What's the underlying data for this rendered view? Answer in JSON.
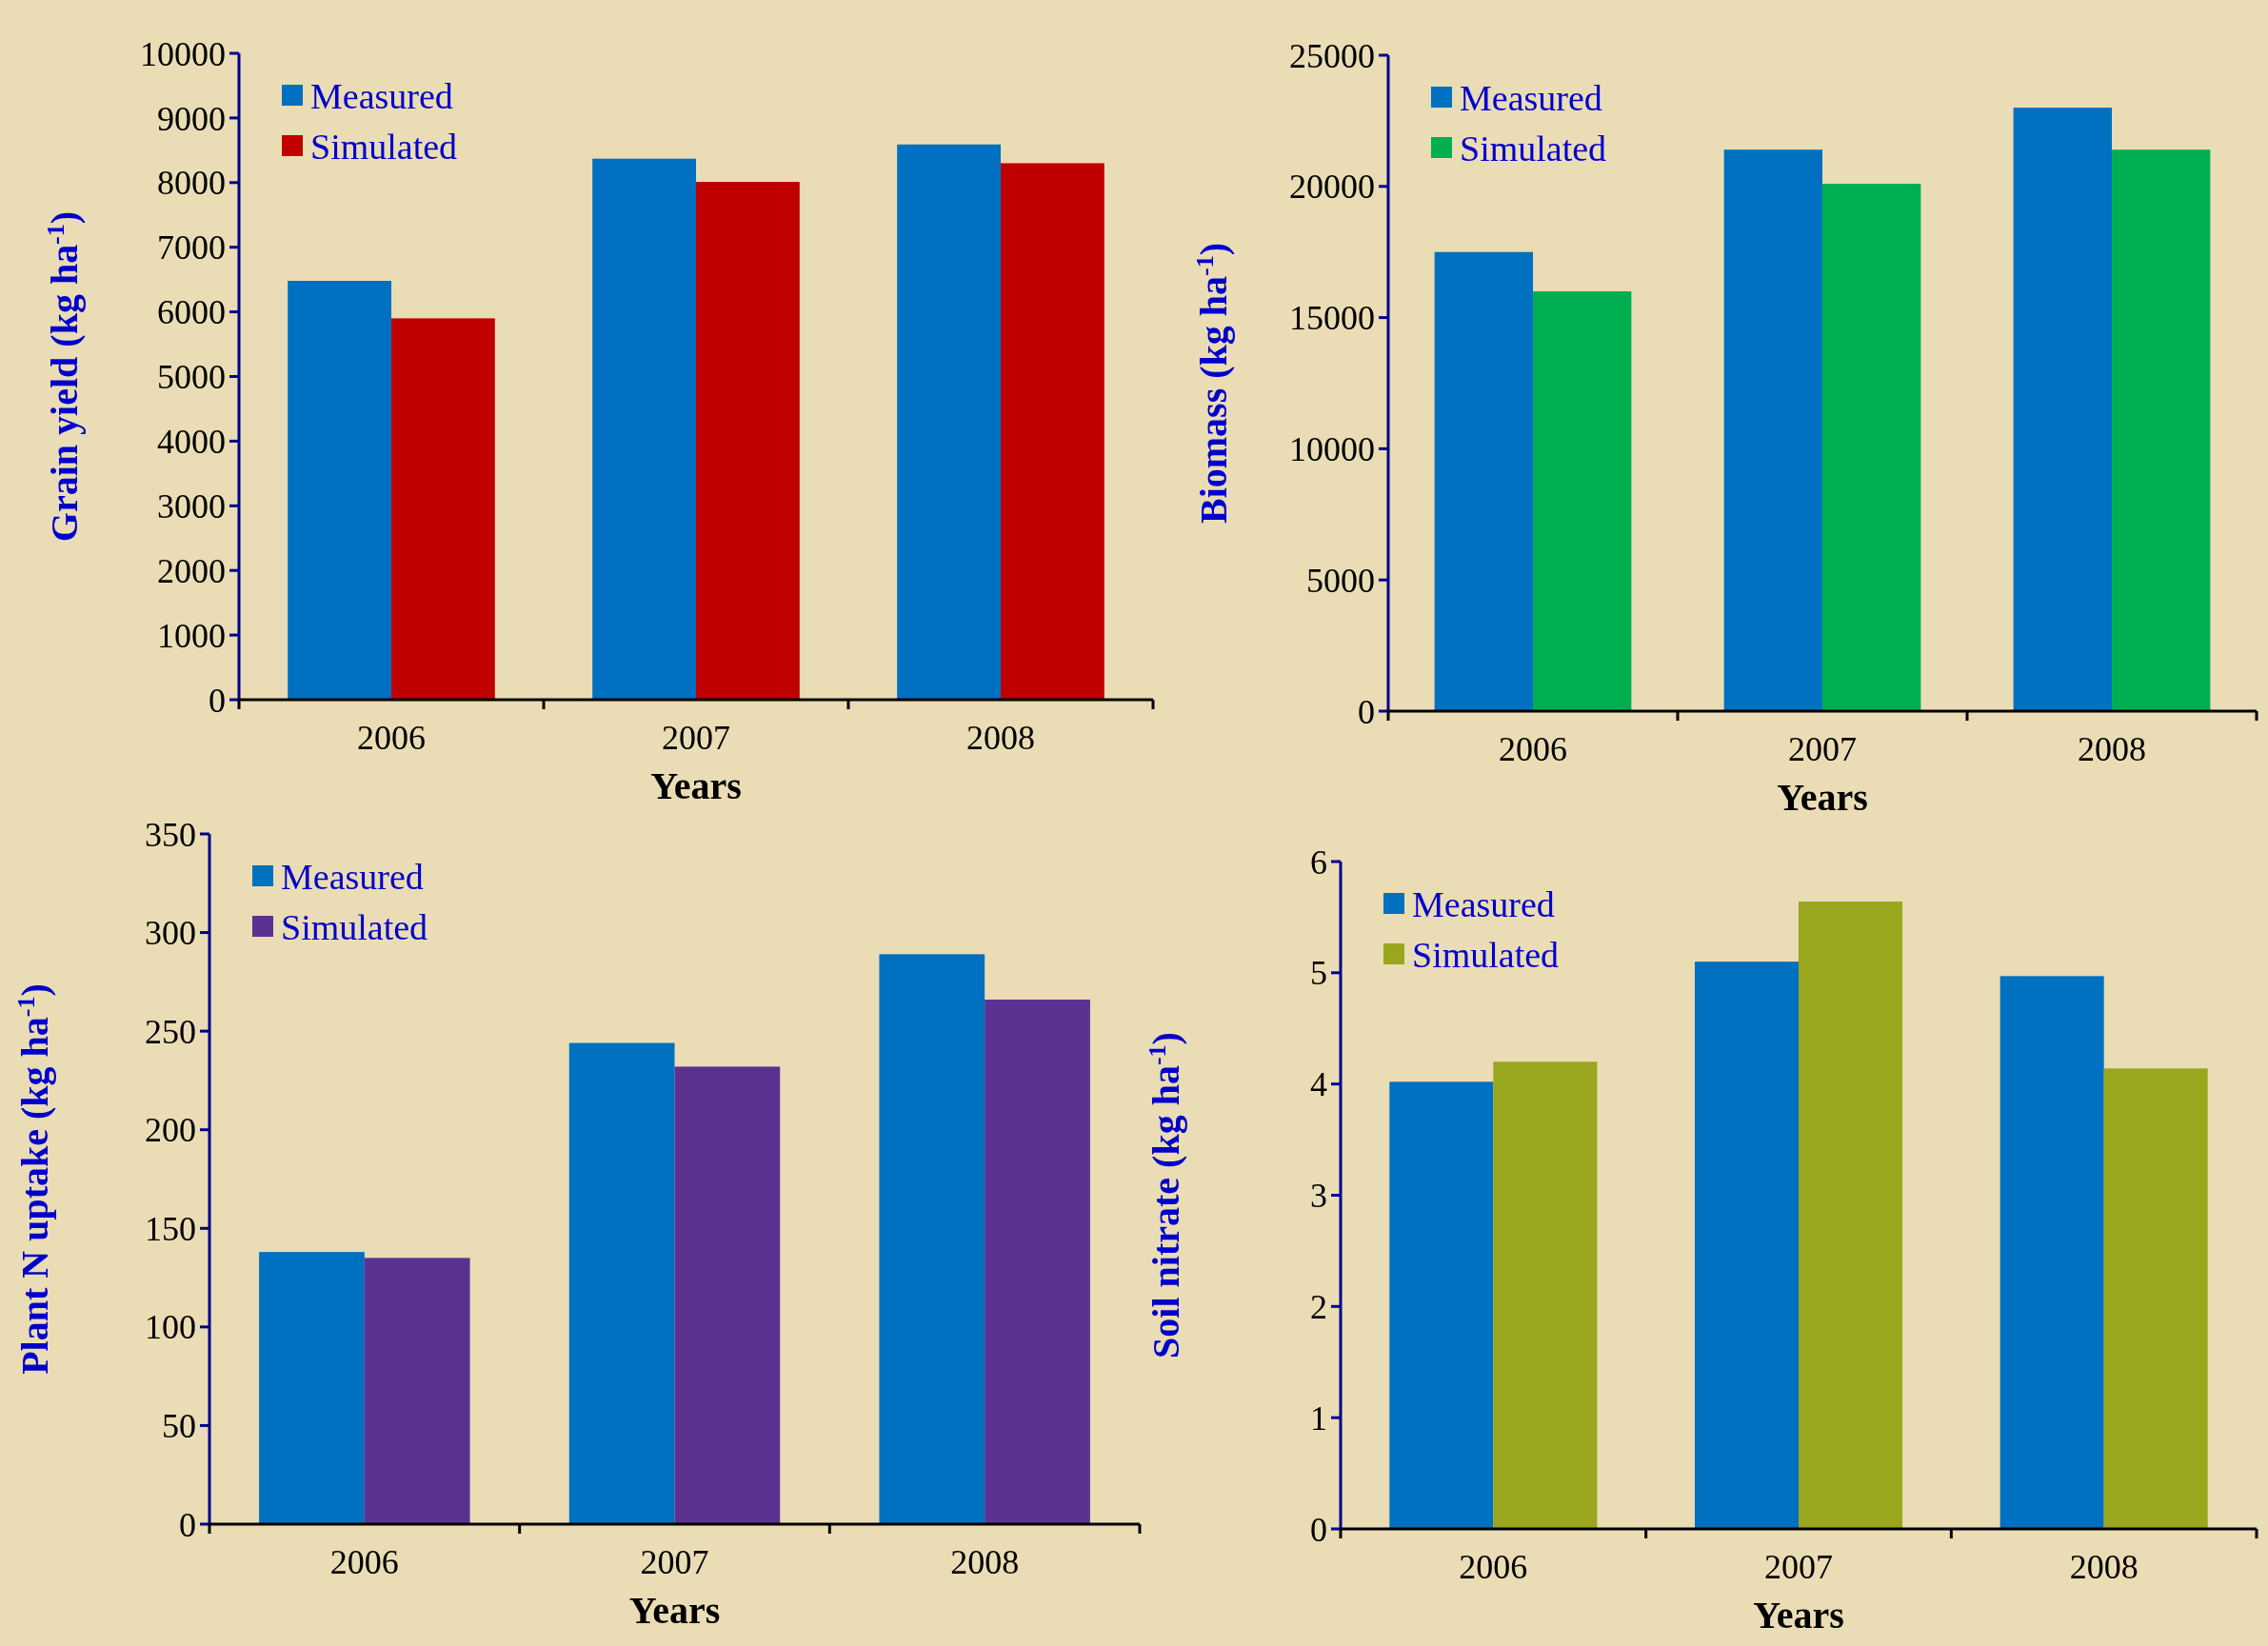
{
  "chart_data": [
    {
      "type": "bar",
      "xlabel": "Years",
      "ylabel": "Grain yield (kg ha$^{-1}$)",
      "categories": [
        "2006",
        "2007",
        "2008"
      ],
      "ylim": [
        0,
        10000
      ],
      "yticks": [
        0,
        1000,
        2000,
        3000,
        4000,
        5000,
        6000,
        7000,
        8000,
        9000,
        10000
      ],
      "legend": "top left",
      "grid": false,
      "series": [
        {
          "name": "Measured",
          "color": "#0070c0",
          "values": [
            6480,
            8370,
            8590
          ]
        },
        {
          "name": "Simulated",
          "color": "#c00000",
          "values": [
            5900,
            8010,
            8300
          ]
        }
      ]
    },
    {
      "type": "bar",
      "xlabel": "Years",
      "ylabel": "Biomass (kg ha$^{-1}$)",
      "categories": [
        "2006",
        "2007",
        "2008"
      ],
      "ylim": [
        0,
        25000
      ],
      "yticks": [
        0,
        5000,
        10000,
        15000,
        20000,
        25000
      ],
      "legend": "top left",
      "grid": false,
      "series": [
        {
          "name": "Measured",
          "color": "#0070c0",
          "values": [
            17500,
            21400,
            23000
          ]
        },
        {
          "name": "Simulated",
          "color": "#00b050",
          "values": [
            16000,
            20100,
            21400
          ]
        }
      ]
    },
    {
      "type": "bar",
      "xlabel": "Years",
      "ylabel": "Plant N uptake  (kg ha$^{-1}$)",
      "categories": [
        "2006",
        "2007",
        "2008"
      ],
      "ylim": [
        0,
        350
      ],
      "yticks": [
        0,
        50,
        100,
        150,
        200,
        250,
        300,
        350
      ],
      "legend": "top left",
      "grid": false,
      "series": [
        {
          "name": "Measured",
          "color": "#0070c0",
          "values": [
            138,
            244,
            289
          ]
        },
        {
          "name": "Simulated",
          "color": "#5b3291",
          "values": [
            135,
            232,
            266
          ]
        }
      ]
    },
    {
      "type": "bar",
      "xlabel": "Years",
      "ylabel": "Soil nitrate (kg ha$^{-1}$)",
      "categories": [
        "2006",
        "2007",
        "2008"
      ],
      "ylim": [
        0,
        6
      ],
      "yticks": [
        0,
        1,
        2,
        3,
        4,
        5,
        6
      ],
      "legend": "top left",
      "grid": false,
      "series": [
        {
          "name": "Measured",
          "color": "#0070c0",
          "values": [
            4.02,
            5.1,
            4.97
          ]
        },
        {
          "name": "Simulated",
          "color": "#9aa61e",
          "values": [
            4.2,
            5.64,
            4.14
          ]
        }
      ]
    }
  ]
}
